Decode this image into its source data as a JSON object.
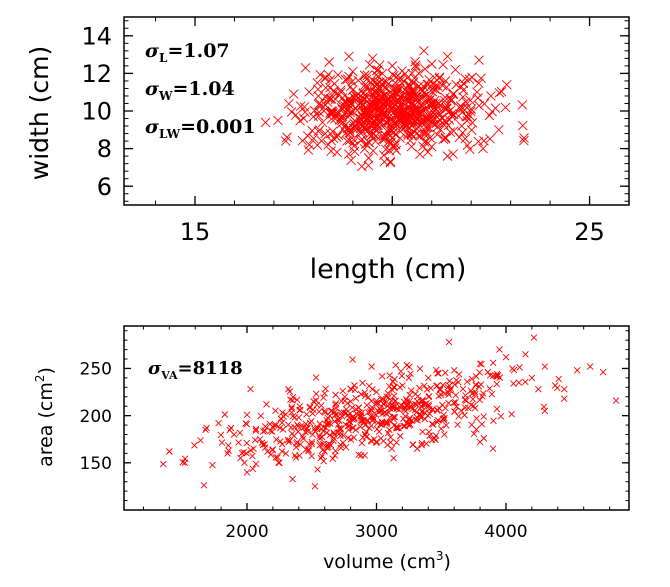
{
  "chart_data": [
    {
      "type": "scatter",
      "xlabel": "length (cm)",
      "ylabel": "width (cm)",
      "xlim": [
        13.2,
        26.0
      ],
      "ylim": [
        5.0,
        15.0
      ],
      "xticks": [
        15,
        20,
        25
      ],
      "yticks": [
        6,
        8,
        10,
        12,
        14
      ],
      "grid": false,
      "marker": "x",
      "marker_color": "#ff0000",
      "annotations": [
        {
          "sym": "σ",
          "sub": "L",
          "text": "=1.07"
        },
        {
          "sym": "σ",
          "sub": "W",
          "text": "=1.04"
        },
        {
          "sym": "σ",
          "sub": "LW",
          "text": "=0.001"
        }
      ],
      "points": [
        [
          17.1,
          9.5
        ],
        [
          17.3,
          8.4
        ],
        [
          17.5,
          10.9
        ],
        [
          17.8,
          12.3
        ],
        [
          17.9,
          8.2
        ],
        [
          18.0,
          9.7
        ],
        [
          18.1,
          11.5
        ],
        [
          18.2,
          10.3
        ],
        [
          18.3,
          8.8
        ],
        [
          18.4,
          12.6
        ],
        [
          18.5,
          9.9
        ],
        [
          18.6,
          7.8
        ],
        [
          18.7,
          11.0
        ],
        [
          18.8,
          10.5
        ],
        [
          18.9,
          9.1
        ],
        [
          19.0,
          12.1
        ],
        [
          19.0,
          8.3
        ],
        [
          19.1,
          10.8
        ],
        [
          19.2,
          9.6
        ],
        [
          19.3,
          11.9
        ],
        [
          19.4,
          7.5
        ],
        [
          19.5,
          10.2
        ],
        [
          19.5,
          12.8
        ],
        [
          19.6,
          9.0
        ],
        [
          19.7,
          11.2
        ],
        [
          19.8,
          8.5
        ],
        [
          19.9,
          10.7
        ],
        [
          20.0,
          9.4
        ],
        [
          20.0,
          12.4
        ],
        [
          20.1,
          7.9
        ],
        [
          20.2,
          11.6
        ],
        [
          20.3,
          10.0
        ],
        [
          20.4,
          8.7
        ],
        [
          20.5,
          12.0
        ],
        [
          20.5,
          9.2
        ],
        [
          20.6,
          10.9
        ],
        [
          20.7,
          7.7
        ],
        [
          20.8,
          11.3
        ],
        [
          20.9,
          9.8
        ],
        [
          21.0,
          12.5
        ],
        [
          21.0,
          8.1
        ],
        [
          21.1,
          10.4
        ],
        [
          21.2,
          11.8
        ],
        [
          21.3,
          9.3
        ],
        [
          21.4,
          7.6
        ],
        [
          21.5,
          10.6
        ],
        [
          21.6,
          12.2
        ],
        [
          21.7,
          8.6
        ],
        [
          21.8,
          11.1
        ],
        [
          21.9,
          9.7
        ],
        [
          22.0,
          10.1
        ],
        [
          22.2,
          12.7
        ],
        [
          22.3,
          8.0
        ],
        [
          22.5,
          10.8
        ],
        [
          22.7,
          9.0
        ],
        [
          22.9,
          11.4
        ],
        [
          20.8,
          13.2
        ],
        [
          19.8,
          7.3
        ],
        [
          18.9,
          12.9
        ],
        [
          21.4,
          12.9
        ]
      ],
      "cloud": {
        "n": 620,
        "x_mean": 20.0,
        "x_sd": 1.07,
        "y_mean": 10.0,
        "y_sd": 1.04,
        "corr": 0.0,
        "seed": 7
      }
    },
    {
      "type": "scatter",
      "xlabel": "volume (cm",
      "xlabel_sup": "3",
      "xlabel_tail": ")",
      "ylabel": "area  (cm",
      "ylabel_sup": "2",
      "ylabel_tail": ")",
      "xlim": [
        1050,
        4950
      ],
      "ylim": [
        100,
        295
      ],
      "xticks": [
        2000,
        3000,
        4000
      ],
      "yticks": [
        150,
        200,
        250
      ],
      "grid": false,
      "marker": "x",
      "marker_color": "#ff0000",
      "annotations": [
        {
          "sym": "σ",
          "sub": "VA",
          "text": "=8118"
        }
      ],
      "points": [
        [
          1400,
          162
        ],
        [
          1520,
          150
        ],
        [
          1680,
          185
        ],
        [
          1780,
          192
        ],
        [
          1850,
          160
        ],
        [
          1900,
          180
        ],
        [
          1980,
          150
        ],
        [
          2050,
          165
        ],
        [
          2100,
          175
        ],
        [
          2200,
          188
        ],
        [
          2300,
          160
        ],
        [
          2400,
          198
        ],
        [
          2500,
          172
        ],
        [
          2600,
          205
        ],
        [
          2700,
          182
        ],
        [
          2800,
          215
        ],
        [
          2900,
          195
        ],
        [
          3000,
          225
        ],
        [
          3100,
          208
        ],
        [
          3200,
          232
        ],
        [
          3300,
          212
        ],
        [
          3400,
          240
        ],
        [
          3500,
          222
        ],
        [
          3560,
          278
        ],
        [
          3600,
          248
        ],
        [
          3700,
          236
        ],
        [
          3800,
          255
        ],
        [
          3900,
          242
        ],
        [
          3950,
          270
        ],
        [
          4000,
          262
        ],
        [
          4050,
          250
        ],
        [
          4100,
          235
        ],
        [
          4150,
          265
        ],
        [
          4200,
          240
        ],
        [
          4250,
          228
        ],
        [
          4300,
          252
        ],
        [
          4380,
          232
        ],
        [
          4450,
          228
        ],
        [
          4550,
          248
        ],
        [
          4650,
          252
        ],
        [
          4750,
          246
        ],
        [
          4850,
          216
        ],
        [
          3900,
          165
        ],
        [
          3800,
          172
        ],
        [
          4300,
          205
        ],
        [
          4450,
          218
        ],
        [
          2150,
          212
        ],
        [
          2000,
          140
        ],
        [
          1950,
          155
        ],
        [
          2250,
          150
        ]
      ],
      "cloud": {
        "n": 560,
        "x_mean": 2980,
        "x_sd": 560,
        "y_mean": 200,
        "y_sd": 24,
        "corr": 0.6,
        "seed": 13
      }
    }
  ]
}
